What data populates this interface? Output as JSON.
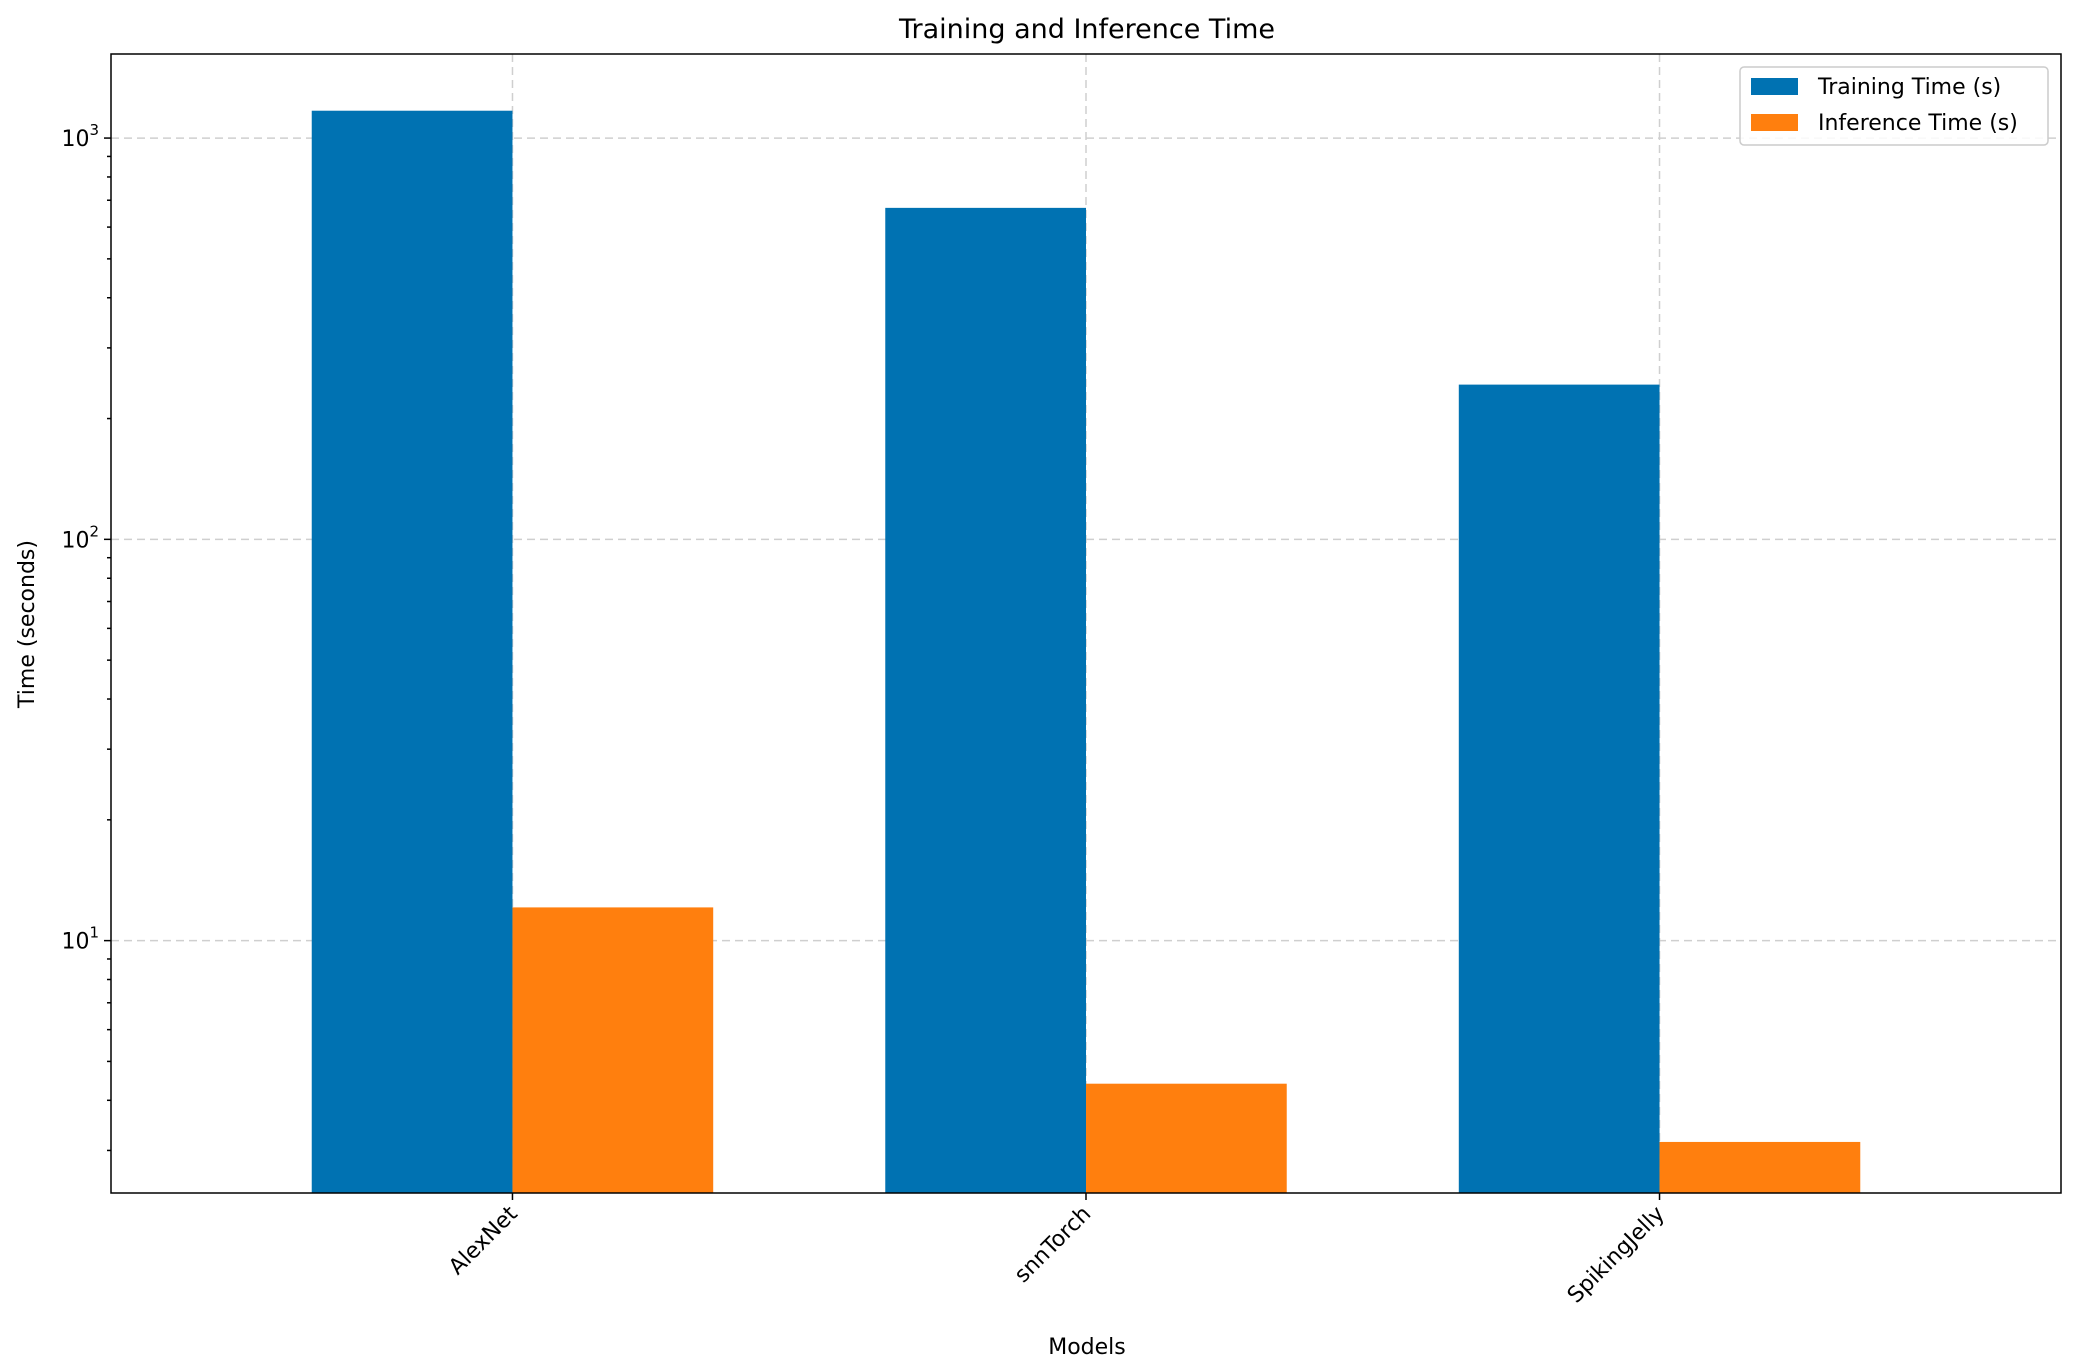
{
  "chart_data": {
    "type": "bar",
    "title": "Training and Inference Time",
    "xlabel": "Models",
    "ylabel": "Time (seconds)",
    "categories": [
      "AlexNet",
      "snnTorch",
      "SpikingJelly"
    ],
    "series": [
      {
        "name": "Training Time (s)",
        "values": [
          1170,
          670,
          243
        ],
        "color": "#0072b2"
      },
      {
        "name": "Inference Time (s)",
        "values": [
          12.1,
          4.4,
          3.15
        ],
        "color": "#ff7f0e"
      }
    ],
    "y_scale": "log",
    "ylim": [
      2.35,
      1620
    ],
    "yticks": [
      {
        "value": 10,
        "base": "10",
        "exp": "1"
      },
      {
        "value": 100,
        "base": "10",
        "exp": "2"
      },
      {
        "value": 1000,
        "base": "10",
        "exp": "3"
      }
    ],
    "grid": true,
    "legend_position": "top-right"
  }
}
